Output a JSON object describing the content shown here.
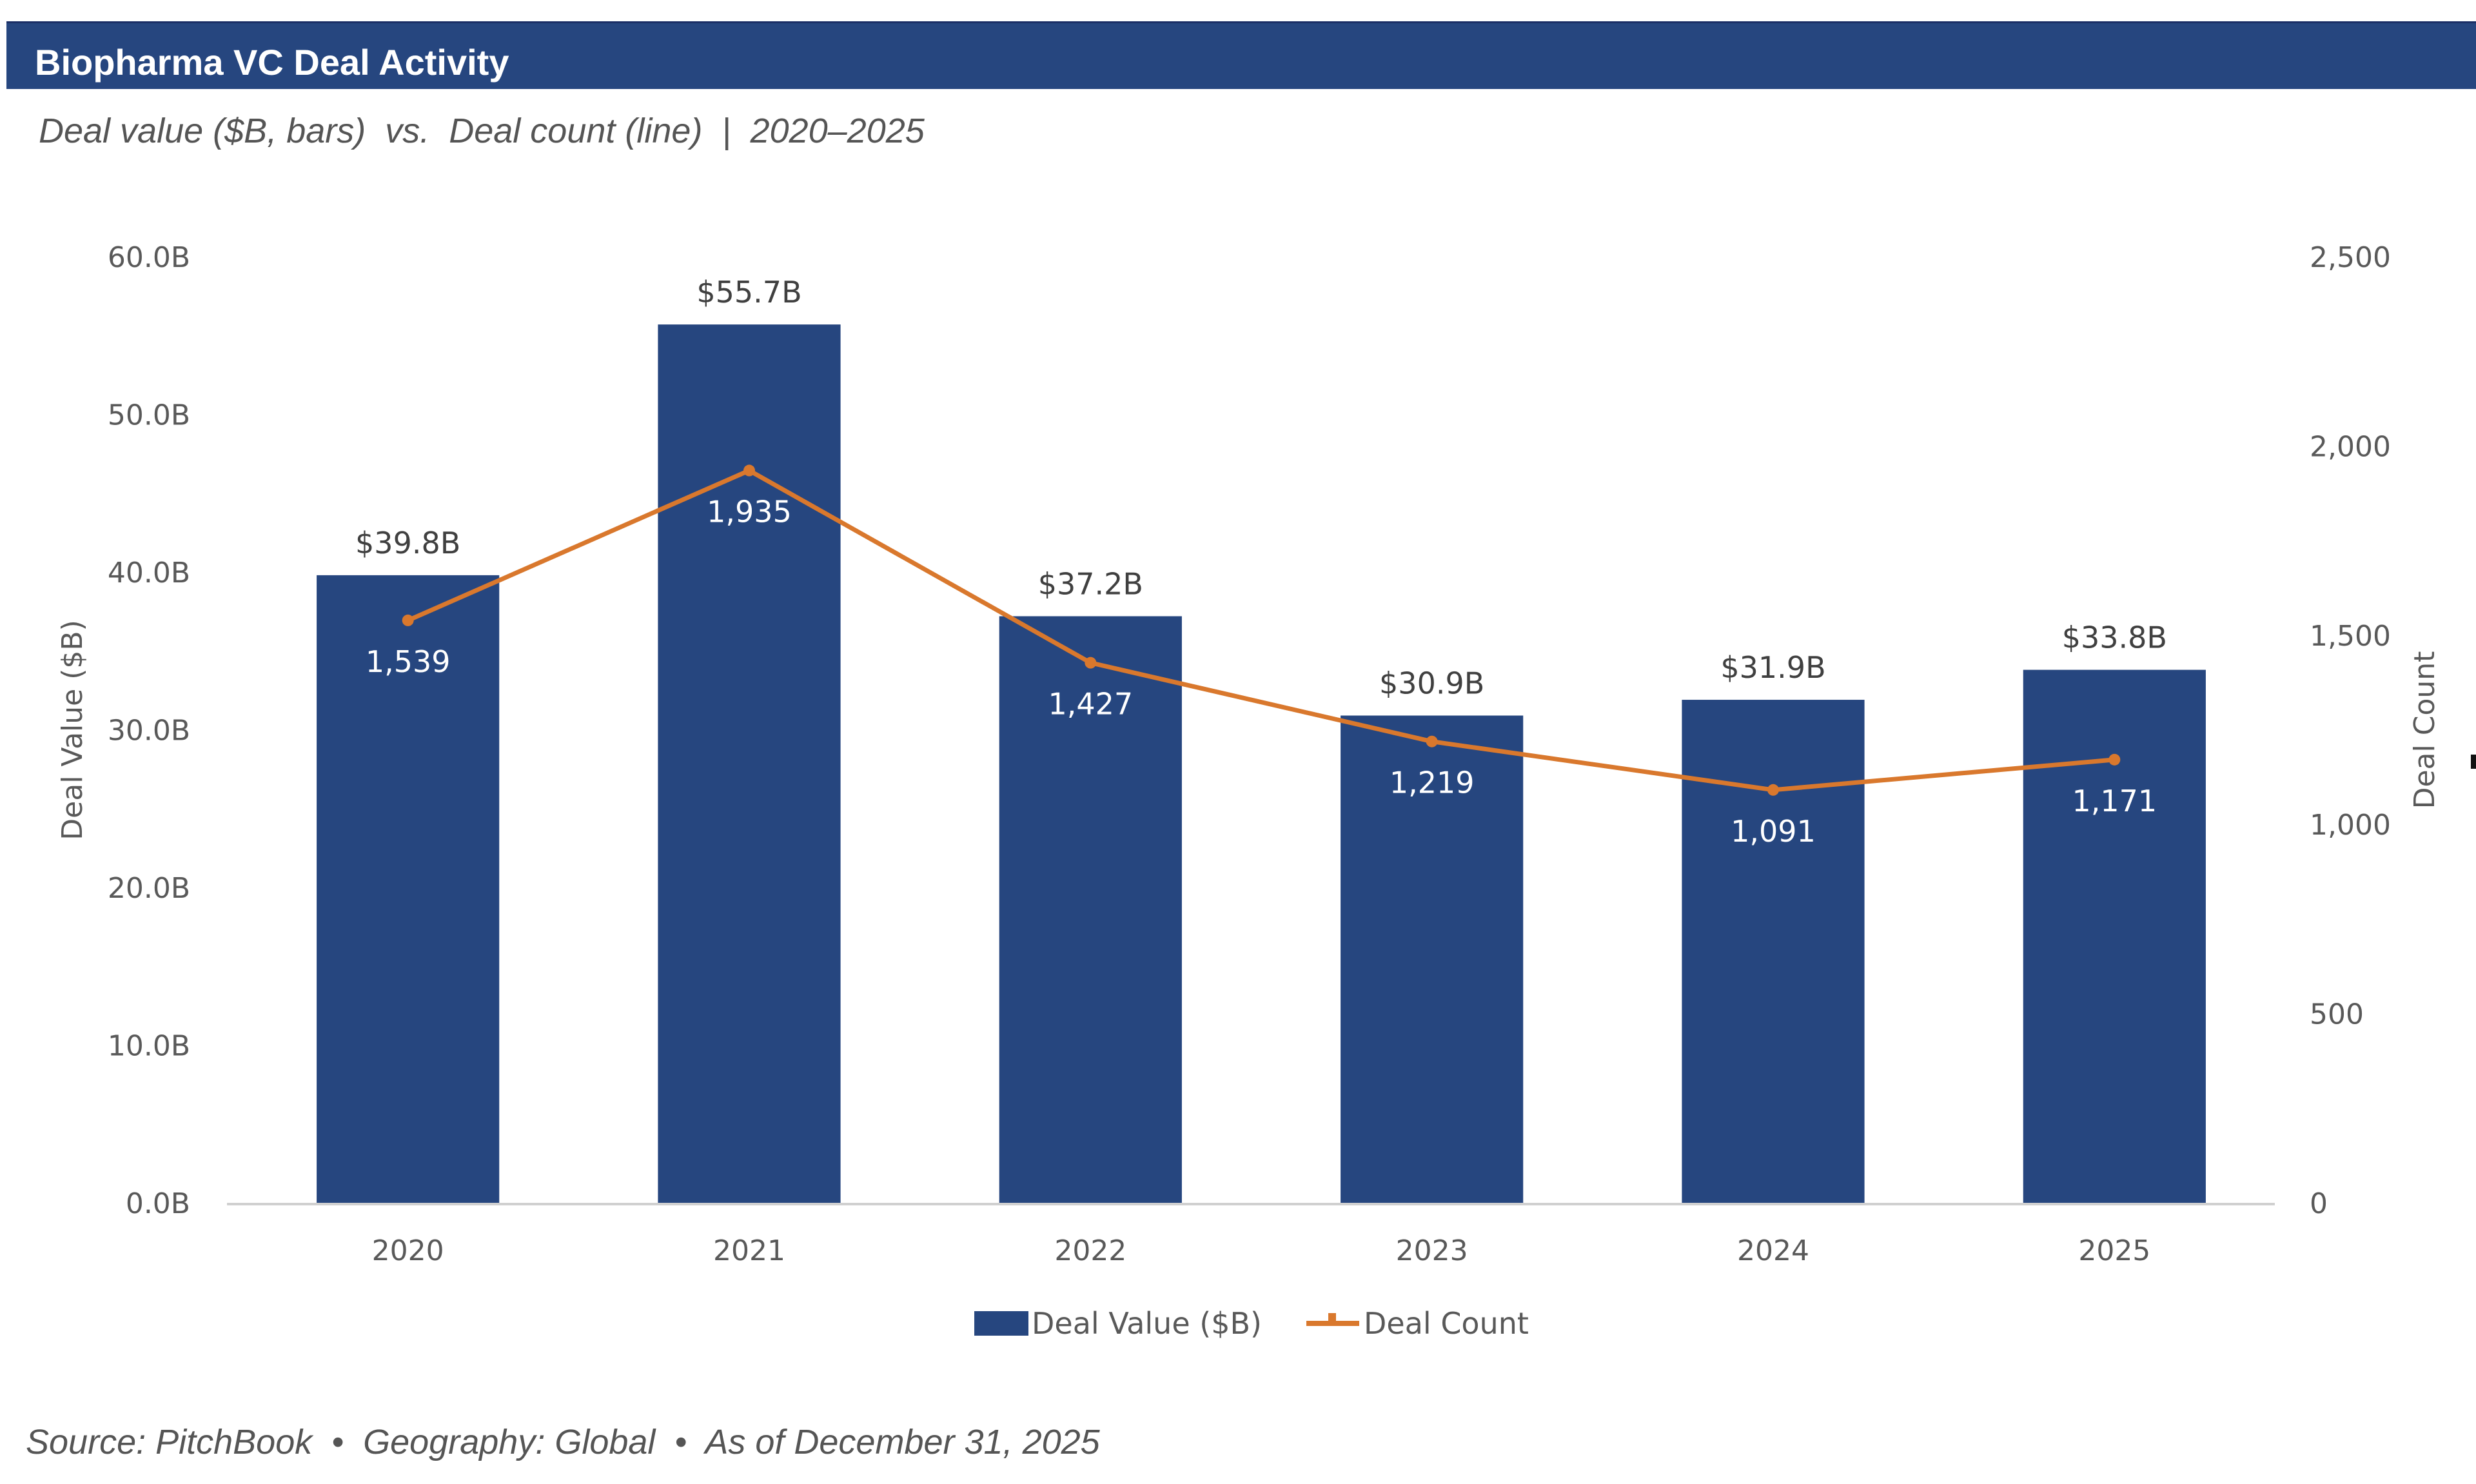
{
  "header": {
    "title": "Biopharma VC Deal Activity",
    "subtitle": "Deal value ($B, bars)  vs.  Deal count (line)  |  2020–2025"
  },
  "footer": {
    "text": "Source: PitchBook  •  Geography: Global  •  As of December 31, 2025"
  },
  "colors": {
    "bar": "#26467f",
    "line": "#d9782d",
    "title_bar": "#26467f",
    "axis_line": "#d0d0d0"
  },
  "chart_data": {
    "type": "bar",
    "title": "Biopharma VC Deal Activity",
    "subtitle": "Deal value ($B, bars) vs. Deal count (line) | 2020–2025",
    "categories": [
      "2020",
      "2021",
      "2022",
      "2023",
      "2024",
      "2025"
    ],
    "series": [
      {
        "name": "Deal Value ($B)",
        "type": "bar",
        "axis": "left",
        "values": [
          39.8,
          55.7,
          37.2,
          30.9,
          31.9,
          33.8
        ],
        "labels": [
          "$39.8B",
          "$55.7B",
          "$37.2B",
          "$30.9B",
          "$31.9B",
          "$33.8B"
        ]
      },
      {
        "name": "Deal Count",
        "type": "line",
        "axis": "right",
        "values": [
          1539,
          1935,
          1427,
          1219,
          1091,
          1171
        ],
        "labels": [
          "1,539",
          "1,935",
          "1,427",
          "1,219",
          "1,091",
          "1,171"
        ]
      }
    ],
    "y_left": {
      "label": "Deal Value ($B)",
      "range": [
        0,
        60
      ],
      "ticks": [
        0,
        10,
        20,
        30,
        40,
        50,
        60
      ],
      "tick_labels": [
        "0.0B",
        "10.0B",
        "20.0B",
        "30.0B",
        "40.0B",
        "50.0B",
        "60.0B"
      ]
    },
    "y_right": {
      "label": "Deal Count",
      "range": [
        0,
        2500
      ],
      "ticks": [
        0,
        500,
        1000,
        1500,
        2000,
        2500
      ],
      "tick_labels": [
        "0",
        "500",
        "1,000",
        "1,500",
        "2,000",
        "2,500"
      ]
    },
    "xlabel": "",
    "grid": false,
    "legend": {
      "position": "bottom-center",
      "entries": [
        "Deal Value ($B)",
        "Deal Count"
      ]
    }
  }
}
